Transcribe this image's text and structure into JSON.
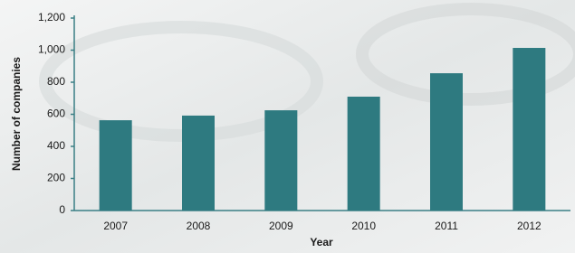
{
  "chart_data": {
    "type": "bar",
    "x_label": "Year",
    "y_label": "Number of companies",
    "categories": [
      "2007",
      "2008",
      "2009",
      "2010",
      "2011",
      "2012"
    ],
    "values": [
      563,
      592,
      625,
      710,
      856,
      1014
    ],
    "color": "#2e7a80",
    "ylim": [
      0,
      1200
    ],
    "yticks": [
      0,
      200,
      400,
      600,
      800,
      {
        "value": 1000,
        "label": "1,000"
      },
      {
        "value": 1200,
        "label": "1,200"
      }
    ],
    "grid": false
  }
}
